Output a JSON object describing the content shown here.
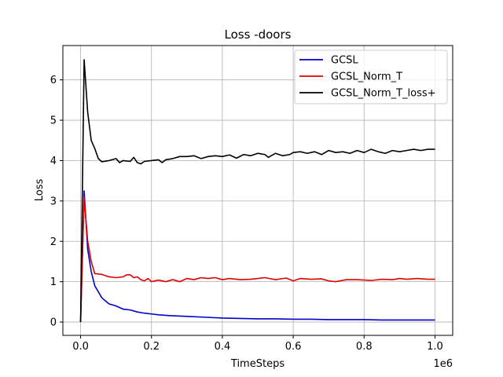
{
  "chart_data": {
    "type": "line",
    "title": "Loss -doors",
    "xlabel": "TimeSteps",
    "ylabel": "Loss",
    "x_scale_label": "1e6",
    "xlim": [
      -0.05,
      1.05
    ],
    "ylim": [
      -0.33,
      6.85
    ],
    "grid": true,
    "legend_position": "top-right",
    "x_ticks": [
      0.0,
      0.2,
      0.4,
      0.6,
      0.8,
      1.0
    ],
    "x_tick_labels": [
      "0.0",
      "0.2",
      "0.4",
      "0.6",
      "0.8",
      "1.0"
    ],
    "y_ticks": [
      0,
      1,
      2,
      3,
      4,
      5,
      6
    ],
    "y_tick_labels": [
      "0",
      "1",
      "2",
      "3",
      "4",
      "5",
      "6"
    ],
    "series": [
      {
        "name": "GCSL",
        "color": "#0000cc",
        "points": [
          [
            0.0,
            0.0
          ],
          [
            0.01,
            3.25
          ],
          [
            0.02,
            1.8
          ],
          [
            0.03,
            1.25
          ],
          [
            0.04,
            0.9
          ],
          [
            0.06,
            0.6
          ],
          [
            0.08,
            0.45
          ],
          [
            0.1,
            0.4
          ],
          [
            0.12,
            0.32
          ],
          [
            0.14,
            0.3
          ],
          [
            0.16,
            0.25
          ],
          [
            0.18,
            0.22
          ],
          [
            0.2,
            0.2
          ],
          [
            0.22,
            0.18
          ],
          [
            0.25,
            0.16
          ],
          [
            0.3,
            0.14
          ],
          [
            0.35,
            0.12
          ],
          [
            0.4,
            0.1
          ],
          [
            0.45,
            0.09
          ],
          [
            0.5,
            0.08
          ],
          [
            0.55,
            0.08
          ],
          [
            0.6,
            0.07
          ],
          [
            0.65,
            0.07
          ],
          [
            0.7,
            0.06
          ],
          [
            0.75,
            0.06
          ],
          [
            0.8,
            0.06
          ],
          [
            0.85,
            0.05
          ],
          [
            0.9,
            0.05
          ],
          [
            0.95,
            0.05
          ],
          [
            1.0,
            0.05
          ]
        ]
      },
      {
        "name": "GCSL_Norm_T",
        "color": "#dd0000",
        "points": [
          [
            0.0,
            0.0
          ],
          [
            0.01,
            3.1
          ],
          [
            0.02,
            2.0
          ],
          [
            0.03,
            1.5
          ],
          [
            0.04,
            1.2
          ],
          [
            0.06,
            1.18
          ],
          [
            0.08,
            1.12
          ],
          [
            0.1,
            1.1
          ],
          [
            0.12,
            1.12
          ],
          [
            0.13,
            1.17
          ],
          [
            0.14,
            1.17
          ],
          [
            0.15,
            1.1
          ],
          [
            0.16,
            1.12
          ],
          [
            0.17,
            1.05
          ],
          [
            0.18,
            1.02
          ],
          [
            0.19,
            1.08
          ],
          [
            0.2,
            1.0
          ],
          [
            0.22,
            1.04
          ],
          [
            0.24,
            1.0
          ],
          [
            0.26,
            1.05
          ],
          [
            0.28,
            1.0
          ],
          [
            0.3,
            1.08
          ],
          [
            0.32,
            1.05
          ],
          [
            0.34,
            1.1
          ],
          [
            0.36,
            1.08
          ],
          [
            0.38,
            1.1
          ],
          [
            0.4,
            1.05
          ],
          [
            0.42,
            1.08
          ],
          [
            0.45,
            1.05
          ],
          [
            0.48,
            1.06
          ],
          [
            0.5,
            1.08
          ],
          [
            0.52,
            1.1
          ],
          [
            0.55,
            1.05
          ],
          [
            0.58,
            1.09
          ],
          [
            0.6,
            1.02
          ],
          [
            0.62,
            1.08
          ],
          [
            0.65,
            1.06
          ],
          [
            0.68,
            1.07
          ],
          [
            0.7,
            1.02
          ],
          [
            0.72,
            1.0
          ],
          [
            0.75,
            1.05
          ],
          [
            0.78,
            1.05
          ],
          [
            0.8,
            1.04
          ],
          [
            0.82,
            1.03
          ],
          [
            0.85,
            1.06
          ],
          [
            0.88,
            1.05
          ],
          [
            0.9,
            1.08
          ],
          [
            0.92,
            1.06
          ],
          [
            0.95,
            1.08
          ],
          [
            0.98,
            1.06
          ],
          [
            1.0,
            1.06
          ]
        ]
      },
      {
        "name": "GCSL_Norm_T_loss+",
        "color": "#000000",
        "points": [
          [
            0.0,
            0.0
          ],
          [
            0.01,
            6.5
          ],
          [
            0.02,
            5.2
          ],
          [
            0.03,
            4.5
          ],
          [
            0.04,
            4.3
          ],
          [
            0.05,
            4.05
          ],
          [
            0.06,
            3.97
          ],
          [
            0.08,
            4.0
          ],
          [
            0.1,
            4.05
          ],
          [
            0.11,
            3.95
          ],
          [
            0.12,
            4.0
          ],
          [
            0.14,
            3.98
          ],
          [
            0.15,
            4.08
          ],
          [
            0.16,
            3.95
          ],
          [
            0.17,
            3.92
          ],
          [
            0.18,
            3.98
          ],
          [
            0.2,
            4.0
          ],
          [
            0.22,
            4.02
          ],
          [
            0.23,
            3.95
          ],
          [
            0.24,
            4.02
          ],
          [
            0.26,
            4.05
          ],
          [
            0.28,
            4.1
          ],
          [
            0.3,
            4.1
          ],
          [
            0.32,
            4.12
          ],
          [
            0.34,
            4.05
          ],
          [
            0.36,
            4.1
          ],
          [
            0.38,
            4.12
          ],
          [
            0.4,
            4.1
          ],
          [
            0.42,
            4.14
          ],
          [
            0.44,
            4.06
          ],
          [
            0.46,
            4.15
          ],
          [
            0.48,
            4.12
          ],
          [
            0.5,
            4.18
          ],
          [
            0.52,
            4.15
          ],
          [
            0.53,
            4.08
          ],
          [
            0.55,
            4.18
          ],
          [
            0.57,
            4.12
          ],
          [
            0.59,
            4.15
          ],
          [
            0.6,
            4.2
          ],
          [
            0.62,
            4.22
          ],
          [
            0.64,
            4.18
          ],
          [
            0.66,
            4.22
          ],
          [
            0.68,
            4.15
          ],
          [
            0.7,
            4.25
          ],
          [
            0.72,
            4.2
          ],
          [
            0.74,
            4.22
          ],
          [
            0.76,
            4.18
          ],
          [
            0.78,
            4.25
          ],
          [
            0.8,
            4.2
          ],
          [
            0.82,
            4.28
          ],
          [
            0.84,
            4.22
          ],
          [
            0.86,
            4.18
          ],
          [
            0.88,
            4.25
          ],
          [
            0.9,
            4.22
          ],
          [
            0.92,
            4.25
          ],
          [
            0.94,
            4.28
          ],
          [
            0.96,
            4.25
          ],
          [
            0.98,
            4.28
          ],
          [
            1.0,
            4.28
          ]
        ]
      }
    ]
  }
}
